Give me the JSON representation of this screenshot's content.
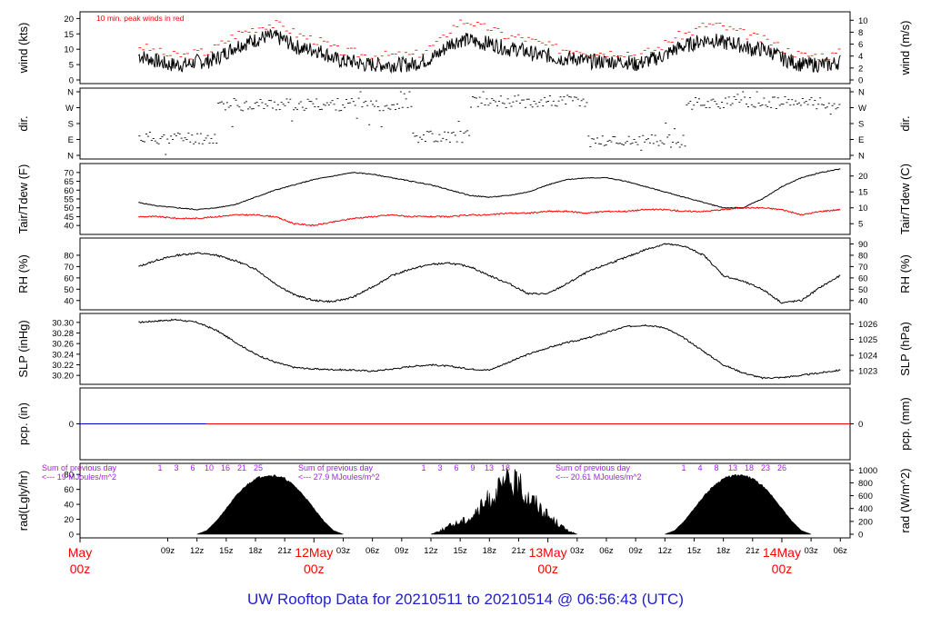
{
  "footer": {
    "title": "UW Rooftop Data for 20210511  to  20210514 @ 06:56:43  (UTC)"
  },
  "colors": {
    "black": "#000000",
    "red": "#ff0000",
    "blue": "#0000cc",
    "purple": "#a020f0",
    "footer_blue": "#1f1fcc"
  },
  "time_axis": {
    "tick_labels": [
      "09z",
      "12z",
      "15z",
      "18z",
      "21z",
      "03z",
      "06z",
      "09z",
      "12z",
      "15z",
      "18z",
      "21z",
      "03z",
      "06z",
      "09z",
      "12z",
      "15z",
      "18z",
      "21z",
      "03z",
      "06z"
    ],
    "day_labels": [
      {
        "date": "May",
        "hour": "00z"
      },
      {
        "date": "12May",
        "hour": "00z"
      },
      {
        "date": "13May",
        "hour": "00z"
      },
      {
        "date": "14May",
        "hour": "00z"
      }
    ]
  },
  "chart_data": [
    {
      "type": "line",
      "id": "wind",
      "ylabel_left": "wind (kts)",
      "ylabel_right": "wind (m/s)",
      "ylim": [
        0,
        21
      ],
      "yticks_left": [
        "0",
        "5",
        "10",
        "15",
        "20"
      ],
      "yticks_right": [
        "0",
        "2",
        "4",
        "6",
        "8",
        "10"
      ],
      "annotation": "10 min. peak winds in red",
      "series": [
        {
          "name": "",
          "color": "#000000",
          "values_hours": [
            6,
            7,
            8,
            9,
            10,
            11,
            12,
            13,
            14,
            15,
            16,
            17,
            18,
            19,
            20,
            21,
            22,
            23,
            24,
            25,
            26,
            27,
            28,
            29,
            30,
            31,
            32,
            33,
            34,
            35,
            36,
            37,
            38,
            39,
            40,
            41,
            42,
            43,
            44,
            45,
            46,
            47,
            48,
            49,
            50,
            51,
            52,
            53,
            54,
            55,
            56,
            57,
            58,
            59,
            60,
            61,
            62,
            63,
            64,
            65,
            66,
            67,
            68,
            69,
            70,
            71,
            72,
            73,
            74,
            75,
            76,
            77,
            78
          ],
          "values": [
            8,
            7,
            6,
            5,
            5,
            5,
            6,
            6,
            7,
            9,
            11,
            12,
            13,
            14,
            14,
            13,
            11,
            10,
            10,
            9,
            7,
            6,
            6,
            5,
            5,
            5,
            5,
            5,
            5,
            6,
            7,
            9,
            12,
            13,
            13,
            12,
            12,
            11,
            10,
            10,
            9,
            8,
            8,
            7,
            7,
            7,
            6,
            6,
            6,
            6,
            6,
            5,
            6,
            7,
            8,
            10,
            11,
            12,
            13,
            13,
            12,
            12,
            11,
            10,
            10,
            9,
            7,
            6,
            5,
            5,
            5,
            5,
            6
          ]
        },
        {
          "name": "",
          "color": "#ff0000",
          "values_hours": [
            6,
            7,
            8,
            9,
            10,
            11,
            12,
            13,
            14,
            15,
            16,
            17,
            18,
            19,
            20,
            21,
            22,
            23,
            24,
            25,
            26,
            27,
            28,
            29,
            30,
            31,
            32,
            33,
            34,
            35,
            36,
            37,
            38,
            39,
            40,
            41,
            42,
            43,
            44,
            45,
            46,
            47,
            48,
            49,
            50,
            51,
            52,
            53,
            54,
            55,
            56,
            57,
            58,
            59,
            60,
            61,
            62,
            63,
            64,
            65,
            66,
            67,
            68,
            69,
            70,
            71,
            72,
            73,
            74,
            75,
            76,
            77,
            78
          ],
          "values": [
            11,
            10,
            9,
            8,
            8,
            8,
            9,
            9,
            11,
            13,
            15,
            16,
            17,
            18,
            18,
            17,
            15,
            14,
            13,
            12,
            10,
            9,
            9,
            8,
            8,
            8,
            8,
            8,
            8,
            9,
            11,
            13,
            17,
            19,
            19,
            17,
            17,
            15,
            14,
            14,
            13,
            12,
            11,
            10,
            10,
            10,
            9,
            9,
            9,
            9,
            9,
            8,
            9,
            10,
            12,
            14,
            15,
            16,
            18,
            18,
            17,
            16,
            15,
            14,
            13,
            12,
            10,
            9,
            8,
            8,
            8,
            8,
            9
          ]
        }
      ]
    },
    {
      "type": "scatter",
      "id": "dir",
      "ylabel_left": "dir.",
      "ylabel_right": "dir.",
      "yticks_left": [
        "N",
        "W",
        "S",
        "E",
        "N"
      ],
      "yticks_right": [
        "N",
        "W",
        "S",
        "E",
        "N"
      ],
      "series": [
        {
          "name": "",
          "color": "#000000",
          "values": []
        }
      ]
    },
    {
      "type": "line",
      "id": "temp",
      "ylabel_left": "Tair/Tdew (F)",
      "ylabel_right": "Tair/Tdew (C)",
      "ylim": [
        37,
        73
      ],
      "yticks_left": [
        "40",
        "45",
        "50",
        "55",
        "60",
        "65",
        "70"
      ],
      "yticks_right": [
        "5",
        "10",
        "15",
        "20"
      ],
      "series": [
        {
          "name": "",
          "color": "#000000",
          "x": [
            6,
            8,
            10,
            12,
            14,
            16,
            18,
            20,
            22,
            24,
            26,
            28,
            30,
            32,
            34,
            36,
            38,
            40,
            42,
            44,
            46,
            48,
            50,
            52,
            54,
            56,
            58,
            60,
            62,
            64,
            66,
            68,
            70,
            72,
            74,
            76,
            78
          ],
          "values": [
            53,
            51,
            50,
            49,
            50,
            52,
            56,
            60,
            63,
            66,
            68,
            70,
            69,
            67,
            65,
            63,
            60,
            57,
            56,
            57,
            59,
            63,
            66,
            67,
            67,
            65,
            62,
            59,
            56,
            53,
            50,
            50,
            55,
            62,
            67,
            70,
            72
          ]
        },
        {
          "name": "",
          "color": "#ff0000",
          "x": [
            6,
            8,
            10,
            12,
            14,
            16,
            18,
            20,
            22,
            24,
            26,
            28,
            30,
            32,
            34,
            36,
            38,
            40,
            42,
            44,
            46,
            48,
            50,
            52,
            54,
            56,
            58,
            60,
            62,
            64,
            66,
            68,
            70,
            72,
            74,
            76,
            78
          ],
          "values": [
            45,
            45,
            44,
            44,
            45,
            46,
            46,
            45,
            41,
            40,
            42,
            44,
            45,
            46,
            45,
            45,
            45,
            46,
            46,
            47,
            47,
            48,
            48,
            47,
            48,
            48,
            49,
            49,
            48,
            48,
            49,
            50,
            50,
            49,
            46,
            48,
            49
          ]
        }
      ]
    },
    {
      "type": "line",
      "id": "rh",
      "ylabel_left": "RH (%)",
      "ylabel_right": "RH (%)",
      "ylim": [
        35,
        92
      ],
      "yticks_left": [
        "40",
        "50",
        "60",
        "70",
        "80"
      ],
      "yticks_right": [
        "40",
        "50",
        "60",
        "70",
        "80",
        "90"
      ],
      "series": [
        {
          "name": "",
          "color": "#000000",
          "x": [
            6,
            8,
            10,
            12,
            14,
            16,
            18,
            20,
            22,
            24,
            26,
            28,
            30,
            32,
            34,
            36,
            38,
            40,
            42,
            44,
            46,
            48,
            50,
            52,
            54,
            56,
            58,
            60,
            62,
            64,
            66,
            68,
            70,
            72,
            74,
            76,
            78
          ],
          "values": [
            70,
            76,
            80,
            82,
            80,
            75,
            68,
            55,
            45,
            40,
            39,
            43,
            52,
            62,
            68,
            72,
            73,
            70,
            62,
            55,
            46,
            46,
            55,
            65,
            72,
            78,
            85,
            90,
            88,
            80,
            62,
            57,
            50,
            38,
            40,
            52,
            62
          ]
        }
      ]
    },
    {
      "type": "line",
      "id": "slp",
      "ylabel_left": "SLP (inHg)",
      "ylabel_right": "SLP (hPa)",
      "ylim": [
        30.19,
        30.31
      ],
      "yticks_left": [
        "30.20",
        "30.22",
        "30.24",
        "30.26",
        "30.28",
        "30.30"
      ],
      "yticks_right": [
        "1023",
        "1024",
        "1025",
        "1026"
      ],
      "series": [
        {
          "name": "",
          "color": "#000000",
          "x": [
            6,
            8,
            10,
            12,
            14,
            16,
            18,
            20,
            22,
            24,
            26,
            28,
            30,
            32,
            34,
            36,
            38,
            40,
            42,
            44,
            46,
            48,
            50,
            52,
            54,
            56,
            58,
            60,
            62,
            64,
            66,
            68,
            70,
            72,
            74,
            76,
            78
          ],
          "values": [
            30.3,
            30.303,
            30.305,
            30.3,
            30.285,
            30.262,
            30.24,
            30.225,
            30.215,
            30.212,
            30.211,
            30.21,
            30.208,
            30.212,
            30.217,
            30.22,
            30.217,
            30.212,
            30.21,
            30.225,
            30.24,
            30.252,
            30.262,
            30.27,
            30.281,
            30.292,
            30.295,
            30.29,
            30.27,
            30.245,
            30.22,
            30.205,
            30.195,
            30.196,
            30.2,
            30.205,
            30.21
          ]
        }
      ]
    },
    {
      "type": "line",
      "id": "pcp",
      "ylabel_left": "pcp. (in)",
      "ylabel_right": "pcp. (mm)",
      "ylim": [
        -1,
        1
      ],
      "yticks_left": [
        "0"
      ],
      "yticks_right": [
        "0"
      ],
      "series": [
        {
          "name": "",
          "color": "#0000cc",
          "x": [
            0,
            13
          ],
          "values": [
            0,
            0
          ]
        },
        {
          "name": "",
          "color": "#ff0000",
          "x": [
            13,
            79
          ],
          "values": [
            0,
            0
          ]
        }
      ]
    },
    {
      "type": "area",
      "id": "rad",
      "ylabel_left": "rad(Lgly/hr)",
      "ylabel_right": "rad (W/m^2)",
      "ylim": [
        0,
        90
      ],
      "yticks_left": [
        "0",
        "20",
        "40",
        "60",
        "80"
      ],
      "yticks_right": [
        "0",
        "200",
        "400",
        "600",
        "800",
        "1000"
      ],
      "annotations": [
        {
          "line1": "Sum of previous day",
          "line2": "<--- 19 MJoules/m^2"
        },
        {
          "line1": "Sum of previous day",
          "line2": "<--- 27.9 MJoules/m^2"
        },
        {
          "line1": "Sum of previous day",
          "line2": "<--- 20.61 MJoules/m^2"
        }
      ],
      "top_tick_labels": [
        [
          "1",
          "3",
          "6",
          "10",
          "16",
          "21",
          "25"
        ],
        [
          "1",
          "3",
          "6",
          "9",
          "13",
          "18"
        ],
        [
          "1",
          "4",
          "8",
          "13",
          "18",
          "23",
          "26"
        ]
      ],
      "series": [
        {
          "name": "",
          "color": "#000000",
          "x": [
            12,
            13,
            14,
            15,
            16,
            17,
            18,
            19,
            20,
            21,
            22,
            23,
            24,
            25,
            26,
            27
          ],
          "values": [
            0,
            5,
            18,
            35,
            52,
            66,
            76,
            80,
            80,
            76,
            66,
            52,
            35,
            18,
            5,
            0
          ]
        },
        {
          "name": "",
          "color": "#000000",
          "x": [
            36,
            37,
            38,
            39,
            40,
            41,
            42,
            43,
            44,
            45,
            46,
            47,
            48,
            49,
            50,
            51
          ],
          "values": [
            0,
            6,
            14,
            20,
            26,
            40,
            58,
            70,
            86,
            78,
            60,
            48,
            30,
            18,
            6,
            0
          ]
        },
        {
          "name": "",
          "color": "#000000",
          "x": [
            60,
            61,
            62,
            63,
            64,
            65,
            66,
            67,
            68,
            69,
            70,
            71,
            72,
            73,
            74,
            75
          ],
          "values": [
            0,
            5,
            18,
            35,
            52,
            66,
            76,
            80,
            80,
            76,
            66,
            52,
            35,
            18,
            5,
            0
          ]
        }
      ]
    }
  ]
}
